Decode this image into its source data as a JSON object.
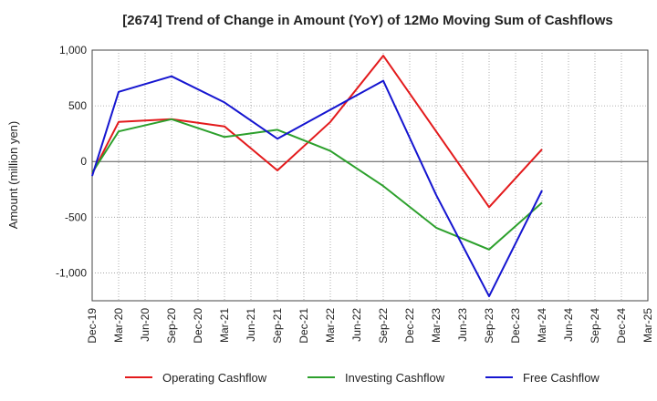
{
  "chart_data": {
    "type": "line",
    "title": "[2674]  Trend of Change in Amount (YoY) of 12Mo Moving Sum of Cashflows",
    "xlabel": "",
    "ylabel": "Amount (million yen)",
    "ylim": [
      -1250,
      1000
    ],
    "yticks": [
      1000,
      500,
      0,
      -500,
      -1000
    ],
    "ytick_labels": [
      "1,000",
      "500",
      "0",
      "-500",
      "-1,000"
    ],
    "grid": true,
    "legend_position": "bottom",
    "categories": [
      "Dec-19",
      "Mar-20",
      "Jun-20",
      "Sep-20",
      "Dec-20",
      "Mar-21",
      "Jun-21",
      "Sep-21",
      "Dec-21",
      "Mar-22",
      "Jun-22",
      "Sep-22",
      "Dec-22",
      "Mar-23",
      "Jun-23",
      "Sep-23",
      "Dec-23",
      "Mar-24",
      "Jun-24",
      "Sep-24",
      "Dec-24",
      "Mar-25"
    ],
    "series": [
      {
        "name": "Operating Cashflow",
        "color": "#e31a1c",
        "values": [
          -110,
          355,
          null,
          380,
          null,
          315,
          null,
          -80,
          null,
          355,
          null,
          950,
          null,
          null,
          null,
          -410,
          null,
          110,
          null,
          null,
          null,
          null
        ]
      },
      {
        "name": "Investing Cashflow",
        "color": "#2ca02c",
        "values": [
          -100,
          270,
          null,
          380,
          null,
          220,
          null,
          285,
          null,
          95,
          null,
          -220,
          null,
          -595,
          null,
          -790,
          null,
          -370,
          null,
          null,
          null,
          null
        ]
      },
      {
        "name": "Free Cashflow",
        "color": "#1515d0",
        "values": [
          -130,
          625,
          null,
          765,
          null,
          530,
          null,
          205,
          null,
          null,
          null,
          725,
          null,
          -300,
          null,
          -1210,
          null,
          -260,
          null,
          null,
          null,
          null
        ]
      }
    ]
  }
}
